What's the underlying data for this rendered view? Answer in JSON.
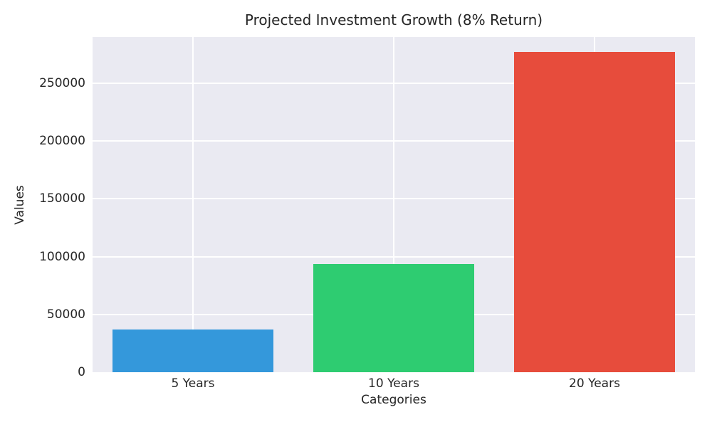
{
  "figure": {
    "background": "#ffffff",
    "plot_background": "#eaeaf2",
    "grid_color": "#ffffff",
    "text_color": "#262626"
  },
  "chart_data": {
    "type": "bar",
    "title": "Projected Investment Growth (8% Return)",
    "xlabel": "Categories",
    "ylabel": "Values",
    "categories": [
      "5 Years",
      "10 Years",
      "20 Years"
    ],
    "values": [
      37000,
      93500,
      276800
    ],
    "bar_colors": [
      "#3498db",
      "#2ecc71",
      "#e74c3c"
    ],
    "yticks": [
      0,
      50000,
      100000,
      150000,
      200000,
      250000
    ],
    "ylim": [
      0,
      290000
    ],
    "grid": true,
    "legend": false
  }
}
